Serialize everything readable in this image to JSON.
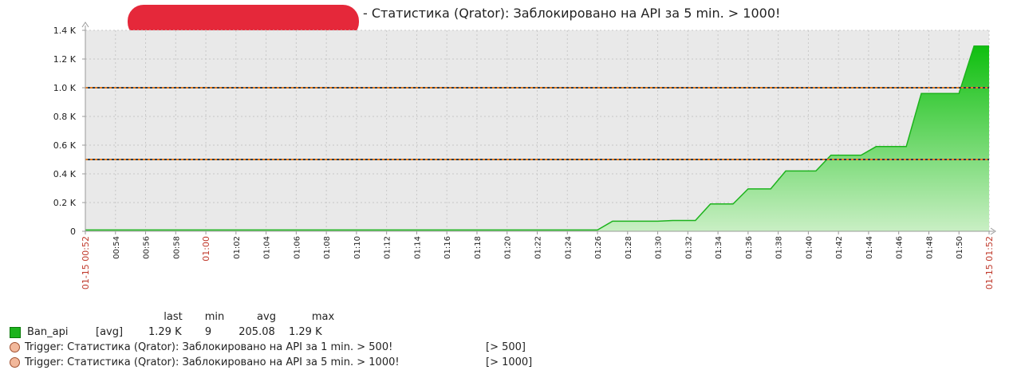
{
  "title": "- Статистика (Qrator): Заблокировано на API за 5 min. > 1000!",
  "chart_data": {
    "type": "area",
    "y_ticks": [
      "0",
      "0.2 K",
      "0.4 K",
      "0.6 K",
      "0.8 K",
      "1.0 K",
      "1.2 K",
      "1.4 K"
    ],
    "ylim": [
      0,
      1400
    ],
    "x_ticks": [
      "01-15 00:52",
      "00:54",
      "00:56",
      "00:58",
      "01:00",
      "01:02",
      "01:04",
      "01:06",
      "01:08",
      "01:10",
      "01:12",
      "01:14",
      "01:16",
      "01:18",
      "01:20",
      "01:22",
      "01:24",
      "01:26",
      "01:28",
      "01:30",
      "01:32",
      "01:34",
      "01:36",
      "01:38",
      "01:40",
      "01:42",
      "01:44",
      "01:46",
      "01:48",
      "01:50",
      "01-15 01:52"
    ],
    "red_ticks": [
      "01-15 00:52",
      "01:00",
      "01-15 01:52"
    ],
    "xlim_minutes": [
      0,
      60
    ],
    "series": [
      {
        "name": "Ban_api",
        "color": "#1db31d",
        "points": [
          [
            0,
            9
          ],
          [
            34,
            9
          ],
          [
            35,
            70
          ],
          [
            38,
            70
          ],
          [
            39,
            75
          ],
          [
            40.5,
            75
          ],
          [
            41.5,
            190
          ],
          [
            43,
            190
          ],
          [
            44,
            295
          ],
          [
            45.5,
            295
          ],
          [
            46.5,
            420
          ],
          [
            48.5,
            420
          ],
          [
            49.5,
            530
          ],
          [
            51.5,
            530
          ],
          [
            52.5,
            590
          ],
          [
            54.5,
            590
          ],
          [
            55.5,
            960
          ],
          [
            58,
            960
          ],
          [
            59,
            1290
          ],
          [
            60,
            1290
          ]
        ]
      }
    ],
    "thresholds": [
      {
        "value": 500,
        "color": "#c0392b"
      },
      {
        "value": 1000,
        "color": "#c0392b"
      }
    ]
  },
  "legend": {
    "headers": [
      "last",
      "min",
      "avg",
      "max"
    ],
    "item": {
      "name": "Ban_api",
      "func": "[avg]",
      "last": "1.29 K",
      "min": "9",
      "avg": "205.08",
      "max": "1.29 K"
    },
    "triggers": [
      {
        "label": "Trigger: Статистика (Qrator): Заблокировано на API за 1 min.  > 500!",
        "cond": "[> 500]"
      },
      {
        "label": "Trigger: Статистика (Qrator): Заблокировано на API за 5 min. > 1000!",
        "cond": "[> 1000]"
      }
    ]
  }
}
